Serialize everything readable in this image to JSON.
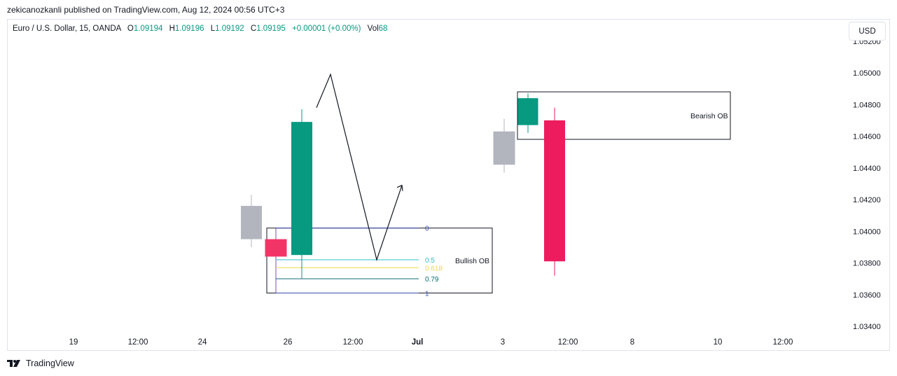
{
  "publisher": "zekicanozkanli published on TradingView.com, Aug 12, 2024 00:56 UTC+3",
  "legend": {
    "symbol": "Euro / U.S. Dollar, 15, OANDA",
    "o_label": "O",
    "o_value": "1.09194",
    "h_label": "H",
    "h_value": "1.09196",
    "l_label": "L",
    "l_value": "1.09192",
    "c_label": "C",
    "c_value": "1.09195",
    "change": "+0.00001 (+0.00%)",
    "vol_label": "Vol",
    "vol_value": "68"
  },
  "currency_button": "USD",
  "footer_brand": "TradingView",
  "chart_data": {
    "type": "candlestick",
    "y_ticks": [
      "1.03400",
      "1.03600",
      "1.03800",
      "1.04000",
      "1.04200",
      "1.04400",
      "1.04600",
      "1.04800",
      "1.05000",
      "1.05200"
    ],
    "x_ticks": [
      "19",
      "12:00",
      "24",
      "26",
      "12:00",
      "Jul",
      "3",
      "12:00",
      "8",
      "10",
      "12:00"
    ],
    "ylim": [
      1.033,
      1.0525
    ],
    "candles": [
      {
        "slot": 0,
        "open": 1.0395,
        "high": 1.0423,
        "low": 1.039,
        "close": 1.0416,
        "color": "#b2b5be"
      },
      {
        "slot": 1,
        "open": 1.0395,
        "high": 1.0395,
        "low": 1.0384,
        "close": 1.0384,
        "color": "#f23567"
      },
      {
        "slot": 2,
        "open": 1.0385,
        "high": 1.0477,
        "low": 1.037,
        "close": 1.0469,
        "color": "#089981"
      },
      {
        "slot": 3,
        "open": 1.0442,
        "high": 1.0471,
        "low": 1.0437,
        "close": 1.0463,
        "color": "#b2b5be"
      },
      {
        "slot": 4,
        "open": 1.0467,
        "high": 1.0487,
        "low": 1.0462,
        "close": 1.0484,
        "color": "#089981"
      },
      {
        "slot": 5,
        "open": 1.047,
        "high": 1.0478,
        "low": 1.0372,
        "close": 1.0381,
        "color": "#ec1c5e"
      }
    ],
    "zigzag": [
      1.0478,
      1.0499,
      1.0382,
      1.0429
    ],
    "fib_levels": [
      {
        "label": "0",
        "value": 1.0402,
        "color": "#3c4fb0"
      },
      {
        "label": "0.5",
        "value": 1.0382,
        "color": "#2fbcd0"
      },
      {
        "label": "0.618",
        "value": 1.0377,
        "color": "#f0d54a"
      },
      {
        "label": "0.79",
        "value": 1.037,
        "color": "#0c6b77"
      },
      {
        "label": "1",
        "value": 1.0361,
        "color": "#3c4fb0"
      }
    ],
    "zones": [
      {
        "label": "Bullish OB",
        "top": 1.0402,
        "bottom": 1.0361
      },
      {
        "label": "Bearish OB",
        "top": 1.0488,
        "bottom": 1.0458
      }
    ]
  }
}
